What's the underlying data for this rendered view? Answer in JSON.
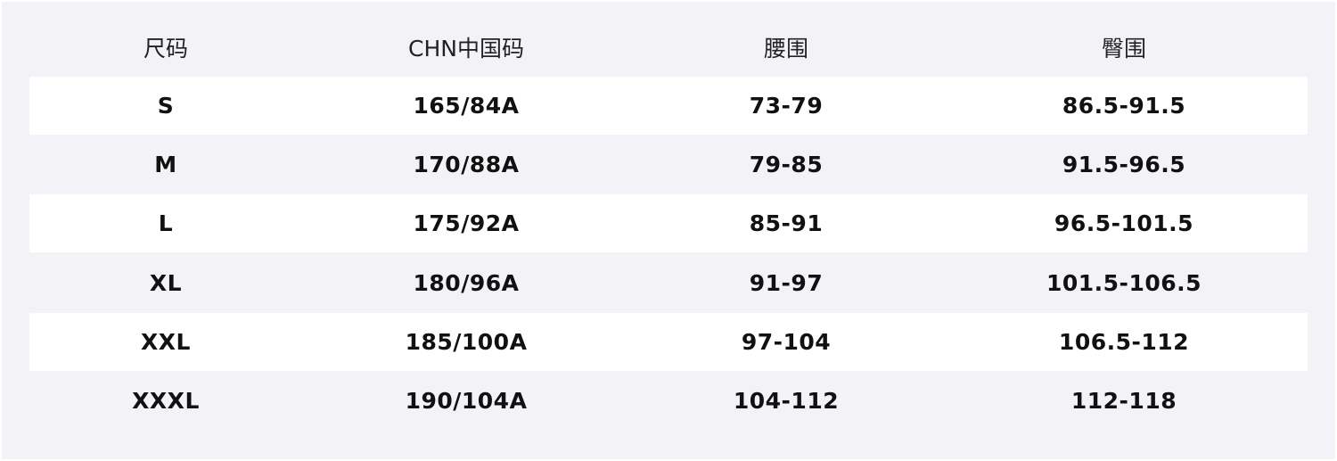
{
  "table": {
    "headers": [
      "尺码",
      "CHN中国码",
      "腰围",
      "臀围"
    ],
    "rows": [
      [
        "S",
        "165/84A",
        "73-79",
        "86.5-91.5"
      ],
      [
        "M",
        "170/88A",
        "79-85",
        "91.5-96.5"
      ],
      [
        "L",
        "175/92A",
        "85-91",
        "96.5-101.5"
      ],
      [
        "XL",
        "180/96A",
        "91-97",
        "101.5-106.5"
      ],
      [
        "XXL",
        "185/100A",
        "97-104",
        "106.5-112"
      ],
      [
        "XXXL",
        "190/104A",
        "104-112",
        "112-118"
      ]
    ]
  }
}
